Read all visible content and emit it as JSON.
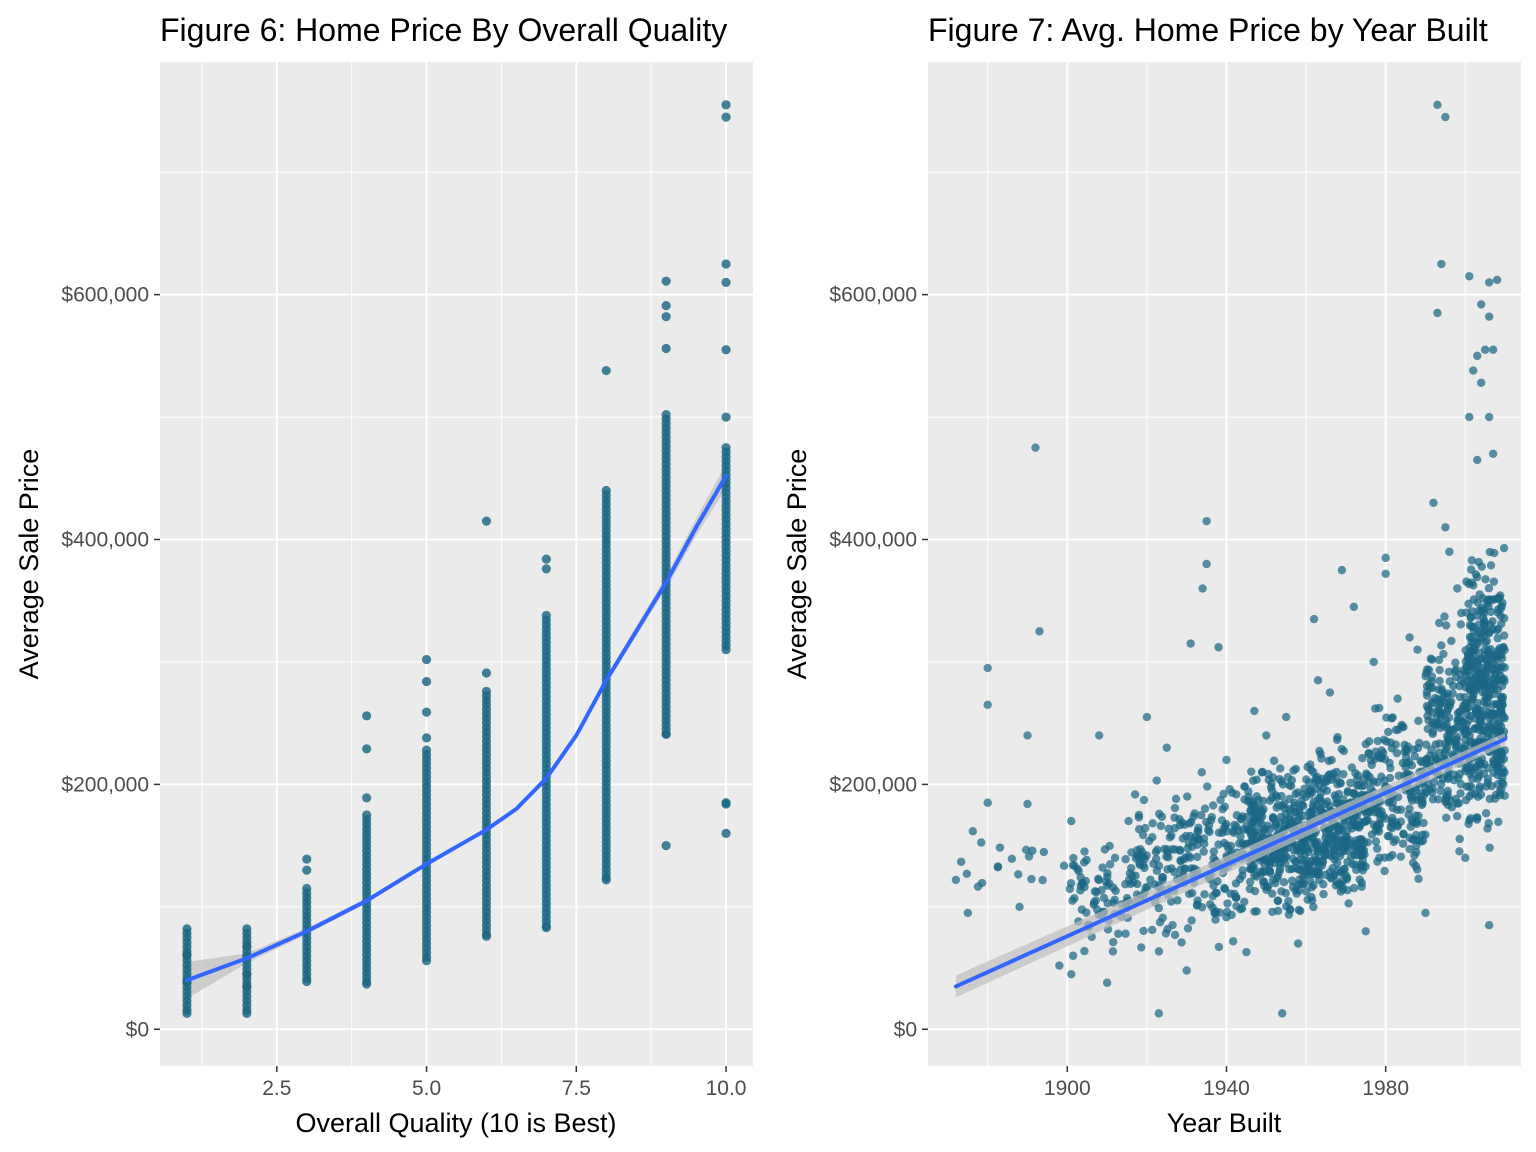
{
  "colors": {
    "panel_bg": "#ebebeb",
    "grid_major": "#ffffff",
    "point": "#1b6784",
    "trend": "#3366ff",
    "ribbon": "#bfbfbf",
    "tick_text": "#4d4d4d"
  },
  "chart_data": [
    {
      "type": "scatter",
      "title": "Figure 6: Home Price By Overall Quality",
      "xlabel": "Overall Quality (10 is Best)",
      "ylabel": "Average Sale Price",
      "xlim": [
        0.55,
        10.45
      ],
      "ylim": [
        -30000,
        790000
      ],
      "x_ticks": [
        2.5,
        5.0,
        7.5,
        10.0
      ],
      "x_tick_labels": [
        "2.5",
        "5.0",
        "7.5",
        "10.0"
      ],
      "y_ticks": [
        0,
        200000,
        400000,
        600000
      ],
      "y_tick_labels": [
        "$0",
        "$200,000",
        "$400,000",
        "$600,000"
      ],
      "grid": true,
      "point_groups": [
        {
          "x": 1,
          "min": 13000,
          "max": 82000,
          "extra": [
            39000,
            61000
          ]
        },
        {
          "x": 2,
          "min": 13000,
          "max": 82000,
          "extra": [
            35000,
            45000,
            60000,
            68000
          ]
        },
        {
          "x": 3,
          "min": 39000,
          "max": 115000,
          "extra": [
            130000,
            139000
          ]
        },
        {
          "x": 4,
          "min": 37000,
          "max": 175000,
          "extra": [
            189000,
            229000,
            256000
          ]
        },
        {
          "x": 5,
          "min": 56000,
          "max": 228000,
          "extra": [
            238000,
            259000,
            284000,
            302000
          ]
        },
        {
          "x": 6,
          "min": 76000,
          "max": 276000,
          "extra": [
            291000,
            415000
          ]
        },
        {
          "x": 7,
          "min": 83000,
          "max": 338000,
          "extra": [
            376000,
            384000
          ]
        },
        {
          "x": 8,
          "min": 122000,
          "max": 440000,
          "extra": [
            538000
          ]
        },
        {
          "x": 9,
          "min": 241000,
          "max": 502000,
          "extra": [
            150000,
            556000,
            582000,
            591000,
            611000
          ]
        },
        {
          "x": 10,
          "min": 310000,
          "max": 475000,
          "extra": [
            160000,
            184000,
            185000,
            500000,
            555000,
            610000,
            625000,
            745000,
            755000
          ]
        }
      ],
      "trend": {
        "x": [
          1,
          2,
          3,
          4,
          5,
          6,
          6.5,
          7,
          7.5,
          8,
          8.5,
          9,
          9.5,
          10
        ],
        "y": [
          40000,
          58000,
          80000,
          105000,
          135000,
          163000,
          180000,
          205000,
          240000,
          285000,
          325000,
          365000,
          410000,
          452000
        ],
        "ribbon": [
          15000,
          4000,
          2500,
          2000,
          1500,
          1500,
          1800,
          2000,
          2500,
          3000,
          4000,
          5000,
          7000,
          10000
        ]
      }
    },
    {
      "type": "scatter",
      "title": "Figure 7: Avg. Home Price by Year Built",
      "xlabel": "Year Built",
      "ylabel": "Average Sale Price",
      "xlim": [
        1865,
        2014
      ],
      "ylim": [
        -30000,
        790000
      ],
      "x_ticks": [
        1900,
        1940,
        1980
      ],
      "x_tick_labels": [
        "1900",
        "1940",
        "1980"
      ],
      "y_ticks": [
        0,
        200000,
        400000,
        600000
      ],
      "y_tick_labels": [
        "$0",
        "$200,000",
        "$400,000",
        "$600,000"
      ],
      "grid": true,
      "trend": {
        "x": [
          1872,
          2010
        ],
        "y": [
          35000,
          237000
        ],
        "ribbon_start": 9000,
        "ribbon_end": 5000
      },
      "highlight_points": [
        {
          "x": 1872,
          "y": 122000
        },
        {
          "x": 1875,
          "y": 95000
        },
        {
          "x": 1880,
          "y": 185000
        },
        {
          "x": 1880,
          "y": 295000
        },
        {
          "x": 1880,
          "y": 265000
        },
        {
          "x": 1890,
          "y": 240000
        },
        {
          "x": 1890,
          "y": 184000
        },
        {
          "x": 1892,
          "y": 475000
        },
        {
          "x": 1893,
          "y": 325000
        },
        {
          "x": 1935,
          "y": 415000
        },
        {
          "x": 1934,
          "y": 360000
        },
        {
          "x": 1935,
          "y": 380000
        },
        {
          "x": 1938,
          "y": 312000
        },
        {
          "x": 1931,
          "y": 315000
        },
        {
          "x": 1947,
          "y": 260000
        },
        {
          "x": 1920,
          "y": 255000
        },
        {
          "x": 1908,
          "y": 240000
        },
        {
          "x": 1954,
          "y": 13000
        },
        {
          "x": 1923,
          "y": 13000
        },
        {
          "x": 1969,
          "y": 375000
        },
        {
          "x": 1962,
          "y": 335000
        },
        {
          "x": 1980,
          "y": 385000
        },
        {
          "x": 1980,
          "y": 372000
        },
        {
          "x": 1972,
          "y": 345000
        },
        {
          "x": 1993,
          "y": 755000
        },
        {
          "x": 1995,
          "y": 745000
        },
        {
          "x": 1994,
          "y": 625000
        },
        {
          "x": 1993,
          "y": 585000
        },
        {
          "x": 2001,
          "y": 615000
        },
        {
          "x": 2006,
          "y": 610000
        },
        {
          "x": 2008,
          "y": 612000
        },
        {
          "x": 2006,
          "y": 582000
        },
        {
          "x": 2004,
          "y": 592000
        },
        {
          "x": 2003,
          "y": 550000
        },
        {
          "x": 2005,
          "y": 555000
        },
        {
          "x": 2007,
          "y": 555000
        },
        {
          "x": 2002,
          "y": 538000
        },
        {
          "x": 2004,
          "y": 528000
        },
        {
          "x": 2001,
          "y": 500000
        },
        {
          "x": 2006,
          "y": 500000
        },
        {
          "x": 2003,
          "y": 465000
        },
        {
          "x": 2007,
          "y": 470000
        },
        {
          "x": 1992,
          "y": 430000
        },
        {
          "x": 1995,
          "y": 410000
        },
        {
          "x": 1996,
          "y": 390000
        },
        {
          "x": 2006,
          "y": 85000
        },
        {
          "x": 1990,
          "y": 95000
        },
        {
          "x": 2000,
          "y": 140000
        },
        {
          "x": 1975,
          "y": 80000
        },
        {
          "x": 1958,
          "y": 70000
        },
        {
          "x": 1945,
          "y": 63000
        },
        {
          "x": 1930,
          "y": 48000
        },
        {
          "x": 1910,
          "y": 38000
        },
        {
          "x": 1901,
          "y": 45000
        },
        {
          "x": 1898,
          "y": 52000
        },
        {
          "x": 1888,
          "y": 100000
        },
        {
          "x": 1901,
          "y": 170000
        },
        {
          "x": 1912,
          "y": 140000
        },
        {
          "x": 1918,
          "y": 175000
        },
        {
          "x": 1925,
          "y": 230000
        },
        {
          "x": 1940,
          "y": 220000
        },
        {
          "x": 1950,
          "y": 240000
        },
        {
          "x": 1955,
          "y": 255000
        },
        {
          "x": 1963,
          "y": 285000
        },
        {
          "x": 1966,
          "y": 275000
        },
        {
          "x": 1977,
          "y": 300000
        },
        {
          "x": 1983,
          "y": 270000
        },
        {
          "x": 1986,
          "y": 320000
        },
        {
          "x": 1988,
          "y": 310000
        },
        {
          "x": 1998,
          "y": 360000
        },
        {
          "x": 1999,
          "y": 340000
        }
      ],
      "density": [
        {
          "x0": 1870,
          "x1": 1900,
          "n": 18,
          "ymin": 95000,
          "ymax": 175000
        },
        {
          "x0": 1900,
          "x1": 1915,
          "n": 70,
          "ymin": 45000,
          "ymax": 165000
        },
        {
          "x0": 1915,
          "x1": 1930,
          "n": 120,
          "ymin": 50000,
          "ymax": 220000
        },
        {
          "x0": 1930,
          "x1": 1945,
          "n": 150,
          "ymin": 55000,
          "ymax": 230000
        },
        {
          "x0": 1945,
          "x1": 1960,
          "n": 300,
          "ymin": 75000,
          "ymax": 230000
        },
        {
          "x0": 1960,
          "x1": 1975,
          "n": 340,
          "ymin": 75000,
          "ymax": 250000
        },
        {
          "x0": 1975,
          "x1": 1990,
          "n": 200,
          "ymin": 95000,
          "ymax": 290000
        },
        {
          "x0": 1990,
          "x1": 2000,
          "n": 200,
          "ymin": 130000,
          "ymax": 360000
        },
        {
          "x0": 2000,
          "x1": 2010,
          "n": 420,
          "ymin": 130000,
          "ymax": 420000
        }
      ]
    }
  ]
}
